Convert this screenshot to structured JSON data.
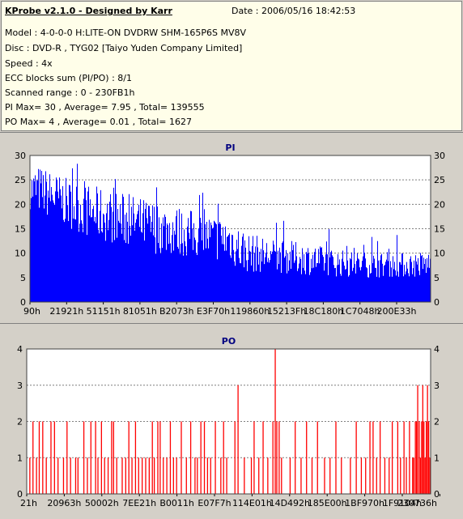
{
  "header": {
    "title": "KProbe v2.1.0 - Designed by Karr",
    "date": "Date : 2006/05/16 18:42:53",
    "lines": [
      "Model : 4-0-0-0 H:LITE-ON DVDRW SHM-165P6S MV8V",
      "Disc : DVD-R , TYG02 [Taiyo Yuden Company Limited]",
      "Speed : 4x",
      "ECC blocks sum (PI/PO) : 8/1",
      "Scanned range : 0 - 230FB1h",
      "PI Max= 30 , Average= 7.95 , Total= 139555",
      "PO Max= 4 , Average= 0.01 , Total= 1627"
    ]
  },
  "chart_data": [
    {
      "type": "bar",
      "title": "PI",
      "ylim": [
        0,
        30
      ],
      "yticks": [
        0,
        5,
        10,
        15,
        20,
        25,
        30
      ],
      "xticks": [
        "90h",
        "21921h",
        "51151h",
        "81051h",
        "B2073h",
        "E3F70h",
        "119860h",
        "15213Fh",
        "18C180h",
        "1C7048h",
        "200E33h"
      ],
      "color": "#0000ff",
      "envelope": [
        [
          0,
          27
        ],
        [
          2,
          28
        ],
        [
          5,
          27
        ],
        [
          10,
          25
        ],
        [
          15,
          24
        ],
        [
          20,
          23
        ],
        [
          25,
          22
        ],
        [
          30,
          21
        ],
        [
          35,
          20
        ],
        [
          40,
          19
        ],
        [
          45,
          18
        ],
        [
          50,
          17.5
        ],
        [
          52,
          16
        ],
        [
          55,
          14
        ],
        [
          60,
          13
        ],
        [
          65,
          12.5
        ],
        [
          70,
          12
        ],
        [
          75,
          11
        ],
        [
          80,
          10.5
        ],
        [
          90,
          10
        ],
        [
          100,
          10.5
        ]
      ],
      "floor": [
        [
          0,
          19
        ],
        [
          5,
          17
        ],
        [
          10,
          15
        ],
        [
          15,
          13
        ],
        [
          20,
          12
        ],
        [
          25,
          11
        ],
        [
          30,
          10
        ],
        [
          35,
          9.5
        ],
        [
          40,
          9
        ],
        [
          45,
          8.5
        ],
        [
          50,
          8
        ],
        [
          52,
          6
        ],
        [
          60,
          6
        ],
        [
          70,
          5.5
        ],
        [
          80,
          5
        ],
        [
          100,
          5
        ]
      ]
    },
    {
      "type": "bar",
      "title": "PO",
      "ylim": [
        0,
        4
      ],
      "yticks": [
        0,
        1,
        2,
        3,
        4
      ],
      "xticks": [
        "21h",
        "20963h",
        "50002h",
        "7EE21h",
        "B0011h",
        "E07F7h",
        "114E01h",
        "14D492h",
        "185E00h",
        "1BF970h",
        "1F9104h",
        "230736h"
      ],
      "color": "#ff0000",
      "spikes": [
        [
          0.8,
          1
        ],
        [
          1.6,
          2
        ],
        [
          2.5,
          1
        ],
        [
          3.2,
          2
        ],
        [
          4.1,
          2
        ],
        [
          5.0,
          1
        ],
        [
          6.2,
          2
        ],
        [
          7.1,
          2
        ],
        [
          8.0,
          1
        ],
        [
          9.4,
          1
        ],
        [
          10.3,
          2
        ],
        [
          11.2,
          1
        ],
        [
          12.5,
          1
        ],
        [
          13.1,
          1
        ],
        [
          14.6,
          2
        ],
        [
          15.5,
          1
        ],
        [
          16.4,
          2
        ],
        [
          17.6,
          2
        ],
        [
          18.2,
          1
        ],
        [
          19.1,
          2
        ],
        [
          19.9,
          1
        ],
        [
          20.8,
          1
        ],
        [
          21.7,
          2
        ],
        [
          22.2,
          2
        ],
        [
          23.0,
          1
        ],
        [
          24.4,
          1
        ],
        [
          25.3,
          1
        ],
        [
          26.1,
          2
        ],
        [
          26.9,
          1
        ],
        [
          27.8,
          2
        ],
        [
          28.6,
          1
        ],
        [
          29.5,
          1
        ],
        [
          30.4,
          1
        ],
        [
          31.3,
          1
        ],
        [
          32.1,
          2
        ],
        [
          32.6,
          1
        ],
        [
          33.5,
          2
        ],
        [
          34.1,
          2
        ],
        [
          34.9,
          1
        ],
        [
          35.8,
          1
        ],
        [
          36.7,
          2
        ],
        [
          37.5,
          1
        ],
        [
          38.3,
          1
        ],
        [
          39.5,
          2
        ],
        [
          40.8,
          1
        ],
        [
          41.9,
          2
        ],
        [
          43.0,
          1
        ],
        [
          43.6,
          1
        ],
        [
          44.5,
          2
        ],
        [
          45.4,
          2
        ],
        [
          46.2,
          1
        ],
        [
          47.0,
          1
        ],
        [
          48.2,
          2
        ],
        [
          49.6,
          1
        ],
        [
          50.3,
          2
        ],
        [
          51.1,
          1
        ],
        [
          53.2,
          2
        ],
        [
          54.0,
          3
        ],
        [
          55.6,
          1
        ],
        [
          57.4,
          1
        ],
        [
          58.1,
          2
        ],
        [
          59.3,
          1
        ],
        [
          60.4,
          2
        ],
        [
          61.6,
          1
        ],
        [
          62.9,
          2
        ],
        [
          63.5,
          4
        ],
        [
          63.9,
          2
        ],
        [
          64.5,
          2
        ],
        [
          65.1,
          1
        ],
        [
          67.3,
          1
        ],
        [
          68.6,
          2
        ],
        [
          70.1,
          1
        ],
        [
          71.5,
          2
        ],
        [
          72.9,
          1
        ],
        [
          74.3,
          2
        ],
        [
          76.1,
          1
        ],
        [
          77.5,
          1
        ],
        [
          79.0,
          2
        ],
        [
          80.4,
          1
        ],
        [
          82.7,
          1
        ],
        [
          84.2,
          2
        ],
        [
          85.5,
          1
        ],
        [
          86.6,
          1
        ],
        [
          87.7,
          2
        ],
        [
          88.5,
          2
        ],
        [
          89.4,
          1
        ],
        [
          90.3,
          2
        ],
        [
          91.5,
          1
        ],
        [
          92.6,
          1
        ],
        [
          93.4,
          2
        ],
        [
          94.8,
          2
        ],
        [
          95.5,
          1
        ],
        [
          96.4,
          2
        ],
        [
          97.0,
          1
        ],
        [
          97.8,
          2
        ],
        [
          98.6,
          1
        ],
        [
          98.9,
          1
        ],
        [
          99.3,
          2
        ],
        [
          99.6,
          2
        ],
        [
          99.9,
          3
        ],
        [
          100.3,
          2
        ],
        [
          100.6,
          1
        ],
        [
          100.9,
          2
        ],
        [
          101.2,
          3
        ],
        [
          101.5,
          2
        ],
        [
          101.8,
          1
        ],
        [
          102.1,
          2
        ],
        [
          102.4,
          3
        ],
        [
          102.7,
          2
        ],
        [
          103.0,
          1
        ]
      ]
    }
  ]
}
